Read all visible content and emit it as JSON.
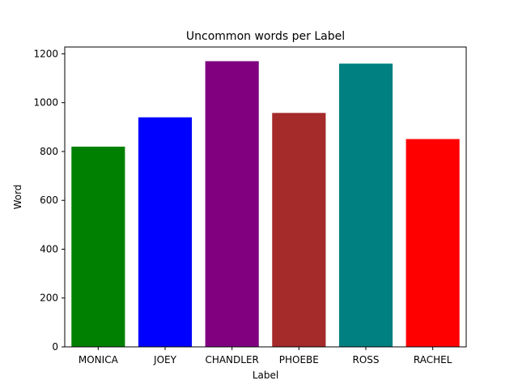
{
  "chart_data": {
    "type": "bar",
    "title": "Uncommon words per Label",
    "xlabel": "Label",
    "ylabel": "Word",
    "categories": [
      "MONICA",
      "JOEY",
      "CHANDLER",
      "PHOEBE",
      "ROSS",
      "RACHEL"
    ],
    "values": [
      820,
      940,
      1170,
      958,
      1160,
      851
    ],
    "colors": [
      "#008000",
      "#0000ff",
      "#800080",
      "#a52a2a",
      "#008080",
      "#ff0000"
    ],
    "ylim": [
      0,
      1228
    ],
    "yticks": [
      0,
      200,
      400,
      600,
      800,
      1000,
      1200
    ],
    "grid": false
  }
}
